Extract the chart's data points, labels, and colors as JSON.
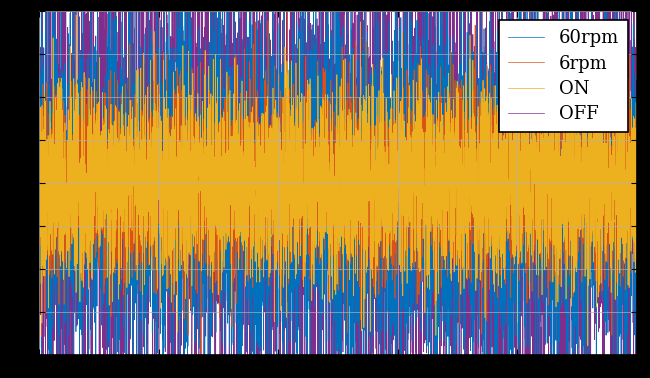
{
  "title": "",
  "xlabel": "",
  "ylabel": "",
  "xlim": [
    0,
    1
  ],
  "ylim": [
    -1,
    1
  ],
  "series": [
    {
      "label": "60rpm",
      "color": "#0072BD",
      "amplitude": 0.52,
      "seed": 10
    },
    {
      "label": "6rpm",
      "color": "#D95319",
      "amplitude": 0.28,
      "seed": 20
    },
    {
      "label": "ON",
      "color": "#EDB120",
      "amplitude": 0.28,
      "seed": 30
    },
    {
      "label": "OFF",
      "color": "#7E2F8E",
      "amplitude": 0.75,
      "seed": 40
    }
  ],
  "plot_order": [
    3,
    0,
    1,
    2
  ],
  "n_points": 5000,
  "background_color": "#ffffff",
  "grid_color": "#b0b0b0",
  "legend_fontsize": 13,
  "linewidth": 0.5,
  "figsize": [
    6.5,
    3.78
  ],
  "dpi": 100
}
